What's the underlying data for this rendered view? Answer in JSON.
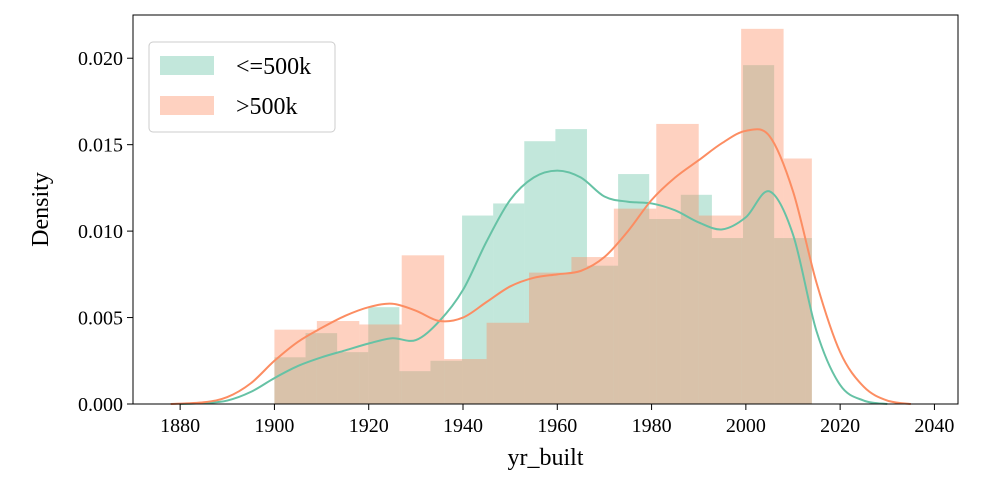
{
  "chart_data": {
    "type": "bar",
    "subtype": "histogram-with-kde",
    "title": "",
    "xlabel": "yr_built",
    "ylabel": "Density",
    "xlim": [
      1870,
      2045
    ],
    "ylim": [
      0,
      0.0225
    ],
    "xticks": [
      1880,
      1900,
      1920,
      1940,
      1960,
      1980,
      2000,
      2020,
      2040
    ],
    "yticks": [
      0.0,
      0.005,
      0.01,
      0.015,
      0.02
    ],
    "ytick_labels": [
      "0.000",
      "0.005",
      "0.010",
      "0.015",
      "0.020"
    ],
    "legend_position": "top-left",
    "series": [
      {
        "name": "<=500k",
        "color": "#66c2a5",
        "hist_bins": [
          [
            1900,
            1906.6
          ],
          [
            1906.6,
            1913.3
          ],
          [
            1913.3,
            1919.9
          ],
          [
            1919.9,
            1926.5
          ],
          [
            1926.5,
            1933.1
          ],
          [
            1933.1,
            1939.8
          ],
          [
            1939.8,
            1946.4
          ],
          [
            1946.4,
            1953.0
          ],
          [
            1953.0,
            1959.6
          ],
          [
            1959.6,
            1966.3
          ],
          [
            1966.3,
            1972.9
          ],
          [
            1972.9,
            1979.5
          ],
          [
            1979.5,
            1986.2
          ],
          [
            1986.2,
            1992.8
          ],
          [
            1992.8,
            1999.4
          ],
          [
            1999.4,
            2006.0
          ],
          [
            2006.0,
            2012.7
          ],
          [
            2012.7,
            2014
          ]
        ],
        "hist_values": [
          0.0027,
          0.0041,
          0.003,
          0.0056,
          0.0019,
          0.0025,
          0.0109,
          0.0116,
          0.0152,
          0.0159,
          0.008,
          0.0133,
          0.0107,
          0.0121,
          0.0096,
          0.0196,
          0.0096,
          0.0096
        ],
        "kde_x": [
          1880,
          1885,
          1890,
          1895,
          1900,
          1905,
          1910,
          1915,
          1920,
          1925,
          1930,
          1935,
          1940,
          1945,
          1950,
          1955,
          1960,
          1965,
          1970,
          1975,
          1980,
          1985,
          1990,
          1995,
          2000,
          2005,
          2010,
          2015,
          2020,
          2025,
          2030
        ],
        "kde_y": [
          0.0,
          5e-05,
          0.0002,
          0.0007,
          0.0015,
          0.0022,
          0.0027,
          0.0031,
          0.0035,
          0.0038,
          0.0037,
          0.0048,
          0.0066,
          0.0094,
          0.0118,
          0.0131,
          0.0135,
          0.0131,
          0.012,
          0.0117,
          0.0116,
          0.0112,
          0.0105,
          0.0101,
          0.0108,
          0.0123,
          0.0098,
          0.0042,
          0.0011,
          0.0002,
          0.0
        ]
      },
      {
        "name": ">500k",
        "color": "#fc8d62",
        "hist_bins": [
          [
            1900,
            1909
          ],
          [
            1909,
            1918
          ],
          [
            1918,
            1927
          ],
          [
            1927,
            1936
          ],
          [
            1936,
            1945
          ],
          [
            1945,
            1954
          ],
          [
            1954,
            1963
          ],
          [
            1963,
            1972
          ],
          [
            1972,
            1981
          ],
          [
            1981,
            1990
          ],
          [
            1990,
            1999
          ],
          [
            1999,
            2008
          ],
          [
            2008,
            2014
          ]
        ],
        "hist_values": [
          0.0043,
          0.0048,
          0.0046,
          0.0086,
          0.0026,
          0.0047,
          0.0076,
          0.0085,
          0.0113,
          0.0162,
          0.0109,
          0.0217,
          0.0142
        ],
        "kde_x": [
          1878,
          1885,
          1890,
          1895,
          1900,
          1905,
          1910,
          1915,
          1920,
          1925,
          1930,
          1935,
          1940,
          1945,
          1950,
          1955,
          1960,
          1965,
          1970,
          1975,
          1980,
          1985,
          1990,
          1995,
          2000,
          2005,
          2010,
          2015,
          2020,
          2025,
          2030,
          2035
        ],
        "kde_y": [
          0.0,
          0.0001,
          0.0004,
          0.0012,
          0.0025,
          0.0036,
          0.0044,
          0.0051,
          0.0056,
          0.0058,
          0.0054,
          0.0048,
          0.005,
          0.0059,
          0.0068,
          0.0073,
          0.0075,
          0.0077,
          0.0085,
          0.01,
          0.0118,
          0.0131,
          0.0141,
          0.0151,
          0.0158,
          0.0155,
          0.0123,
          0.007,
          0.003,
          0.001,
          0.0002,
          0.0
        ]
      }
    ]
  }
}
